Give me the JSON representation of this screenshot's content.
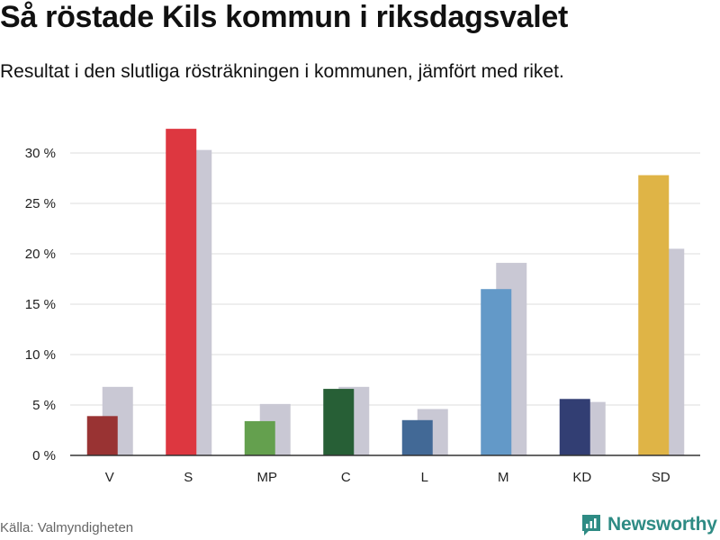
{
  "title": "Så röstade Kils kommun i riksdagsvalet",
  "subtitle": "Resultat i den slutliga rösträkningen i kommunen, jämfört med riket.",
  "source": "Källa: Valmyndigheten",
  "brand": "Newsworthy",
  "colors": {
    "brand": "#2e8b84",
    "national": "#c9c8d4",
    "grid": "#dddddd",
    "axis": "#333333"
  },
  "chart_data": {
    "type": "bar",
    "categories": [
      "V",
      "S",
      "MP",
      "C",
      "L",
      "M",
      "KD",
      "SD"
    ],
    "series": [
      {
        "values": [
          3.9,
          32.4,
          3.4,
          6.6,
          3.5,
          16.5,
          5.6,
          27.8
        ],
        "colors": [
          "#993333",
          "#dd3740",
          "#64a04e",
          "#275f36",
          "#426996",
          "#6399c8",
          "#323e73",
          "#dfb446"
        ]
      },
      {
        "values": [
          6.8,
          30.3,
          5.1,
          6.8,
          4.6,
          19.1,
          5.3,
          20.5
        ],
        "color": "#c9c8d4"
      }
    ],
    "ylim": [
      0,
      30
    ],
    "yticks": [
      0,
      5,
      10,
      15,
      20,
      25,
      30
    ],
    "ytick_labels": [
      "0 %",
      "5 %",
      "10 %",
      "15 %",
      "20 %",
      "25 %",
      "30 %"
    ],
    "grid": true,
    "xlabel": "",
    "ylabel": ""
  }
}
